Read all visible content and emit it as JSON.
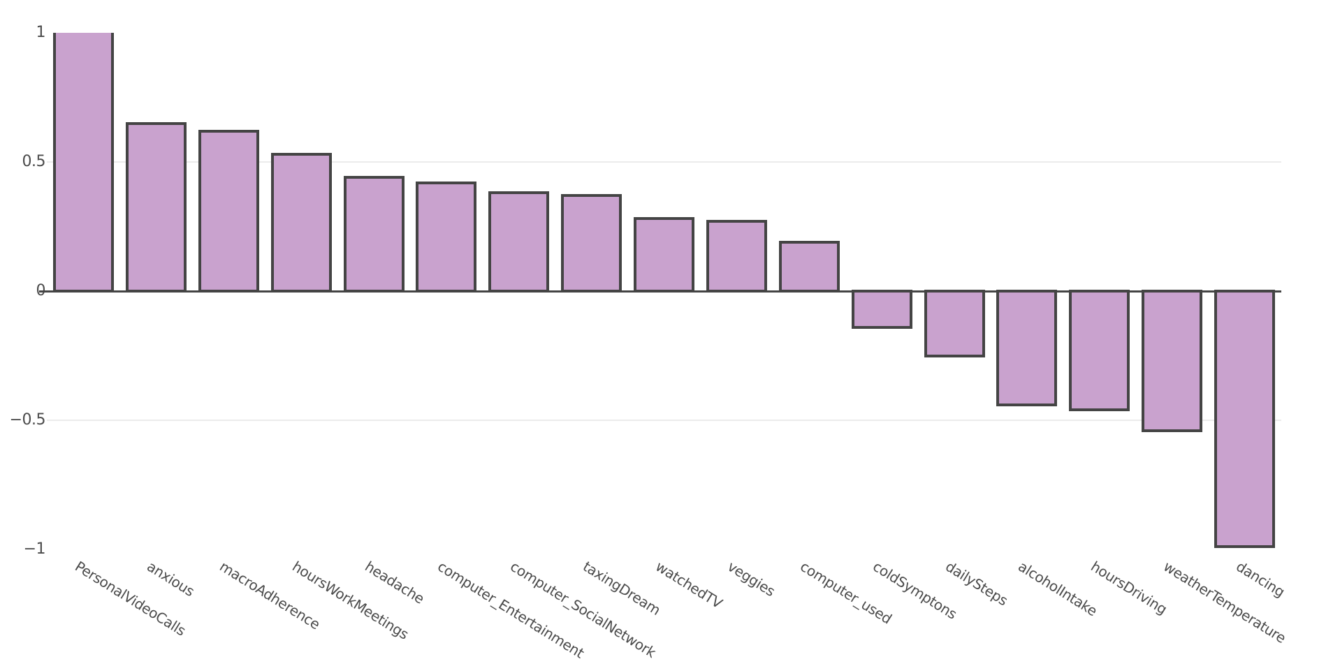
{
  "chart_data": {
    "type": "bar",
    "title": "",
    "subtitle": "",
    "xlabel": "",
    "ylabel": "",
    "legend": "none",
    "grid": "horizontal",
    "ylim": [
      -1,
      1
    ],
    "categories": [
      "PersonalVideoCalls",
      "anxious",
      "macroAdherence",
      "hoursWorkMeetings",
      "headache",
      "computer_Entertainment",
      "computer_SocialNetwork",
      "taxingDream",
      "watchedTV",
      "veggies",
      "computer_used",
      "coldSymptons",
      "dailySteps",
      "alcoholIntake",
      "hoursDriving",
      "weatherTemperature",
      "dancing"
    ],
    "values": [
      1.0,
      0.65,
      0.62,
      0.53,
      0.44,
      0.42,
      0.38,
      0.37,
      0.28,
      0.27,
      0.19,
      -0.14,
      -0.25,
      -0.44,
      -0.46,
      -0.54,
      -0.99
    ],
    "yticks": [
      {
        "value": 1,
        "label": "1"
      },
      {
        "value": 0.5,
        "label": "0.5"
      },
      {
        "value": 0,
        "label": "0"
      },
      {
        "value": -0.5,
        "label": "−0.5"
      },
      {
        "value": -1,
        "label": "−1"
      }
    ],
    "grid_values": [
      0.5,
      -0.5
    ],
    "x_tick_angle_deg": 32,
    "colors": {
      "bar_fill": "#c9a2ce",
      "bar_border": "#444444",
      "zero_line": "#444444",
      "gridline": "#ebebeb",
      "tick_label": "#4b4b4b",
      "background": "#ffffff"
    }
  }
}
